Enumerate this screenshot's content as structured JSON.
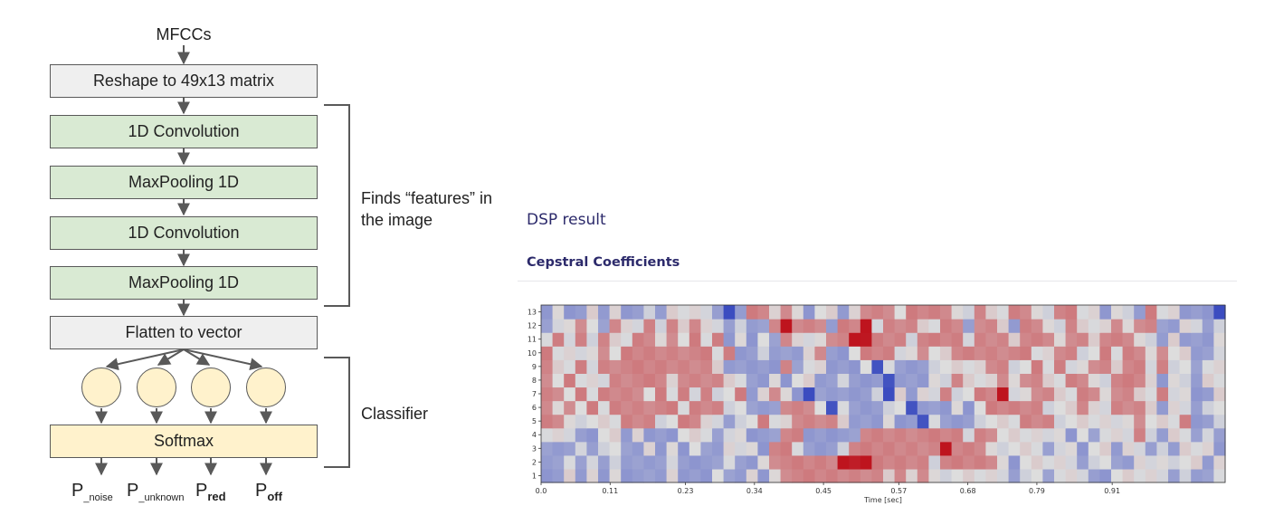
{
  "diagram": {
    "input_label": "MFCCs",
    "layers": [
      {
        "label": "Reshape to 49x13 matrix",
        "kind": "reshape"
      },
      {
        "label": "1D Convolution",
        "kind": "conv"
      },
      {
        "label": "MaxPooling 1D",
        "kind": "pool"
      },
      {
        "label": "1D Convolution",
        "kind": "conv"
      },
      {
        "label": "MaxPooling 1D",
        "kind": "pool"
      },
      {
        "label": "Flatten to vector",
        "kind": "flatten"
      },
      {
        "label": "Softmax",
        "kind": "softmax"
      }
    ],
    "brackets": {
      "features": "Finds “features” in the image",
      "classifier": "Classifier"
    },
    "outputs": [
      {
        "base": "P",
        "sub": "_noise",
        "bold": false
      },
      {
        "base": "P",
        "sub": "_unknown",
        "bold": false
      },
      {
        "base": "P",
        "sub": "red",
        "bold": true
      },
      {
        "base": "P",
        "sub": "off",
        "bold": true
      }
    ],
    "colors": {
      "gray": "#efefef",
      "green": "#d9ead3",
      "yellow": "#fff2cc",
      "border": "#595959"
    }
  },
  "dsp": {
    "title": "DSP result",
    "subtitle": "Cepstral Coefficients"
  },
  "chart_data": {
    "type": "heatmap",
    "xlabel": "Time [sec]",
    "ylabel": "",
    "x_ticks": [
      "0.0",
      "0.11",
      "0.23",
      "0.34",
      "0.45",
      "0.57",
      "0.68",
      "0.79",
      "0.91"
    ],
    "y_ticks": [
      "1",
      "2",
      "3",
      "4",
      "5",
      "6",
      "7",
      "8",
      "9",
      "10",
      "11",
      "12",
      "13"
    ],
    "colormap": "coolwarm",
    "value_range": [
      -1,
      1
    ],
    "rows_bottom_to_top": [
      "--.-.-.----.---.--.-.+++++++++.+.+.......-..-...--.....-.--",
      "--.-.-.----.----.--.++++++###+++++.+++++.-.....-..--......-",
      "---.-..--.-.-.--...-++.---.++++++++#+++.....-..-..-..-.-...-",
      "...--..-.---...-..---++-----+++++++++.++......-.-...+.-..-.-",
      "++.....+++..++..-..+..++++.---.--=.---....+++.......+...+--",
      "+.+.+.++++++.+++..---+++.=.---..=---.-.+++++...+..+++.-..-.",
      "++.+.++++.+.+.+..+-.+.-=-----.=.-..+..++#..++..++.++..+..--",
      "+.+...+++++.++++..--.-..--.---=---..+...+.++..++..+++.-..-",
      "+..+.++++++++++.-----+-..---.=.---.....++..+.+..++.++.+..-.",
      "+....+.++++++++.+--.---.+--.+++..+..+++++++..++..+.++.+..--",
      ".+.+.+..++.+.+.+-.-.-+...++##+++.++++.+++.+++.++.+++..-.---",
      "-..+.-+..+.+.+..-.--+#+++-++#.+++..++-++.-++..+...+.++--..-.",
      "-.--.-.--.-....-=-++.+.-..-.+++.++++..+..++..++..-..-+..---="
    ]
  }
}
